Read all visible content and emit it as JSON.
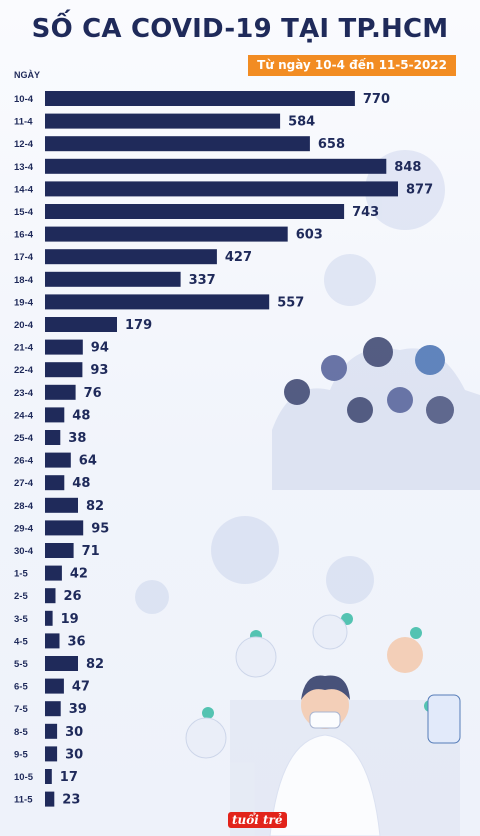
{
  "chart_data": {
    "type": "bar",
    "orientation": "horizontal",
    "title": "SỐ CA COVID-19 TẠI TP.HCM",
    "subtitle": "Từ ngày 10-4 đến 11-5-2022",
    "ylabel": "NGÀY",
    "categories": [
      "10-4",
      "11-4",
      "12-4",
      "13-4",
      "14-4",
      "15-4",
      "16-4",
      "17-4",
      "18-4",
      "19-4",
      "20-4",
      "21-4",
      "22-4",
      "23-4",
      "24-4",
      "25-4",
      "26-4",
      "27-4",
      "28-4",
      "29-4",
      "30-4",
      "1-5",
      "2-5",
      "3-5",
      "4-5",
      "5-5",
      "6-5",
      "7-5",
      "8-5",
      "9-5",
      "10-5",
      "11-5"
    ],
    "values": [
      770,
      584,
      658,
      848,
      877,
      743,
      603,
      427,
      337,
      557,
      179,
      94,
      93,
      76,
      48,
      38,
      64,
      48,
      82,
      95,
      71,
      42,
      26,
      19,
      36,
      82,
      47,
      39,
      30,
      30,
      17,
      23
    ],
    "bar_color": "#1f2a5a",
    "text_color": "#1f2a5a",
    "accent_color": "#f28c23",
    "grid": false,
    "xlim": [
      0,
      877
    ]
  },
  "logo_text": "tuổi trẻ"
}
